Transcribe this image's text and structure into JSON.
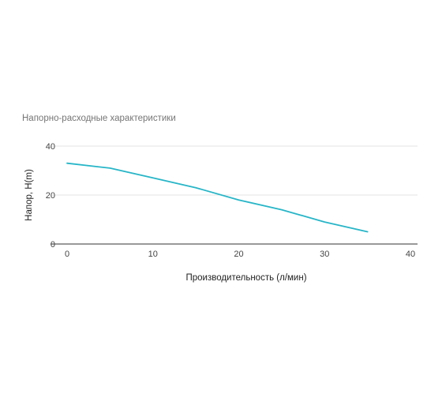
{
  "chart_data": {
    "type": "line",
    "title": "Напорно-расходные характеристики",
    "xlabel": "Производительность (л/мин)",
    "ylabel": "Напор, H(m)",
    "xlim": [
      0,
      40
    ],
    "ylim": [
      0,
      40
    ],
    "x_ticks": [
      "0",
      "10",
      "20",
      "30",
      "40"
    ],
    "y_ticks": [
      "0",
      "20",
      "40"
    ],
    "grid": true,
    "legend": "none",
    "series": [
      {
        "color": "#26b6c8",
        "x": [
          0,
          5,
          10,
          15,
          20,
          25,
          30,
          35
        ],
        "y": [
          33,
          31,
          27,
          23,
          18,
          14,
          9,
          5
        ]
      }
    ]
  }
}
